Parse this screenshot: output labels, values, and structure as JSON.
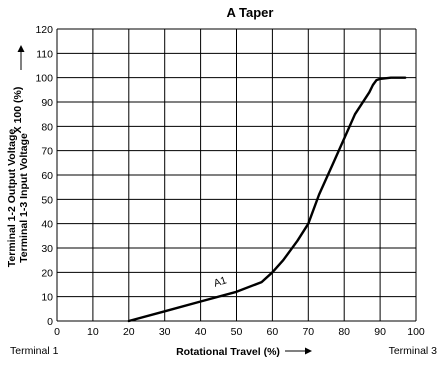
{
  "chart_data": {
    "type": "line",
    "title": "A Taper",
    "xlabel": "Rotational Travel (%)",
    "ylabel_line1": "Terminal 1-2 Output Voltage",
    "ylabel_line2": "Terminal 1-3 Input Voltage",
    "ylabel_suffix": "X 100 (%)",
    "xlim": [
      0,
      100
    ],
    "ylim": [
      0,
      120
    ],
    "x_ticks": [
      0,
      10,
      20,
      30,
      40,
      50,
      60,
      70,
      80,
      90,
      100
    ],
    "y_ticks": [
      0,
      10,
      20,
      30,
      40,
      50,
      60,
      70,
      80,
      90,
      100,
      110,
      120
    ],
    "grid": true,
    "x_end_labels": {
      "left": "Terminal 1",
      "right": "Terminal 3"
    },
    "series": [
      {
        "name": "A1",
        "x": [
          20,
          30,
          40,
          50,
          57,
          60,
          63,
          67,
          70,
          73,
          77,
          80,
          83,
          87,
          88,
          89,
          90,
          93,
          95,
          97
        ],
        "y": [
          0,
          4,
          8,
          12,
          16,
          20,
          25,
          33,
          40,
          52,
          65,
          75,
          85,
          94,
          97,
          99,
          99.5,
          100,
          100,
          100
        ]
      }
    ],
    "annotations": [
      {
        "text": "A1",
        "x": 44,
        "y": 14,
        "rotate": -18
      }
    ]
  }
}
